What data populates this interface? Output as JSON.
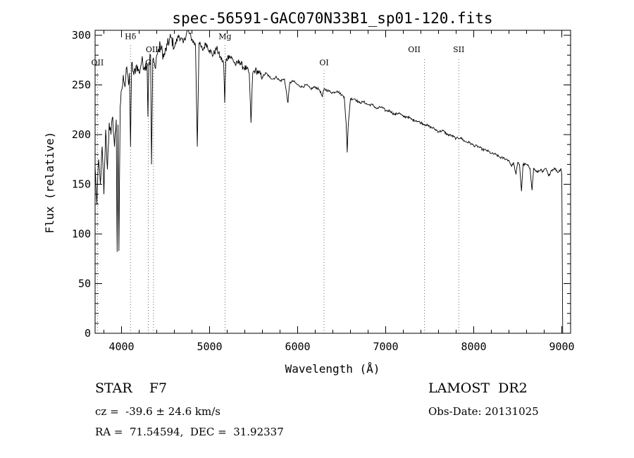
{
  "chart_data": {
    "type": "line",
    "title": "spec-56591-GAC070N33B1_sp01-120.fits",
    "xlabel": "Wavelength (Å)",
    "ylabel": "Flux (relative)",
    "xlim": [
      3700,
      9100
    ],
    "ylim": [
      0,
      305
    ],
    "xticks": [
      4000,
      5000,
      6000,
      7000,
      8000,
      9000
    ],
    "yticks": [
      0,
      50,
      100,
      150,
      200,
      250,
      300
    ],
    "grid": false,
    "legend": "none",
    "series": [
      {
        "points": [
          [
            3700,
            168
          ],
          [
            3720,
            130
          ],
          [
            3740,
            175
          ],
          [
            3760,
            150
          ],
          [
            3780,
            188
          ],
          [
            3800,
            140
          ],
          [
            3820,
            205
          ],
          [
            3840,
            165
          ],
          [
            3860,
            212
          ],
          [
            3880,
            200
          ],
          [
            3900,
            218
          ],
          [
            3920,
            188
          ],
          [
            3940,
            215
          ],
          [
            3950,
            82
          ],
          [
            3960,
            210
          ],
          [
            3970,
            83
          ],
          [
            3985,
            228
          ],
          [
            4000,
            245
          ],
          [
            4020,
            260
          ],
          [
            4040,
            248
          ],
          [
            4060,
            268
          ],
          [
            4080,
            250
          ],
          [
            4090,
            262
          ],
          [
            4102,
            188
          ],
          [
            4115,
            272
          ],
          [
            4140,
            260
          ],
          [
            4170,
            270
          ],
          [
            4200,
            262
          ],
          [
            4230,
            275
          ],
          [
            4260,
            268
          ],
          [
            4290,
            272
          ],
          [
            4300,
            218
          ],
          [
            4310,
            272
          ],
          [
            4330,
            280
          ],
          [
            4341,
            170
          ],
          [
            4355,
            275
          ],
          [
            4380,
            268
          ],
          [
            4400,
            280
          ],
          [
            4440,
            290
          ],
          [
            4480,
            278
          ],
          [
            4520,
            290
          ],
          [
            4560,
            298
          ],
          [
            4600,
            288
          ],
          [
            4650,
            300
          ],
          [
            4700,
            292
          ],
          [
            4750,
            305
          ],
          [
            4800,
            296
          ],
          [
            4840,
            290
          ],
          [
            4861,
            188
          ],
          [
            4880,
            292
          ],
          [
            4920,
            285
          ],
          [
            4960,
            292
          ],
          [
            5000,
            285
          ],
          [
            5040,
            280
          ],
          [
            5080,
            287
          ],
          [
            5120,
            278
          ],
          [
            5160,
            272
          ],
          [
            5172,
            232
          ],
          [
            5185,
            274
          ],
          [
            5220,
            280
          ],
          [
            5260,
            276
          ],
          [
            5300,
            270
          ],
          [
            5340,
            274
          ],
          [
            5380,
            268
          ],
          [
            5420,
            266
          ],
          [
            5450,
            262
          ],
          [
            5470,
            212
          ],
          [
            5490,
            262
          ],
          [
            5520,
            265
          ],
          [
            5560,
            262
          ],
          [
            5600,
            258
          ],
          [
            5640,
            262
          ],
          [
            5680,
            258
          ],
          [
            5720,
            256
          ],
          [
            5760,
            258
          ],
          [
            5800,
            254
          ],
          [
            5850,
            256
          ],
          [
            5890,
            232
          ],
          [
            5910,
            252
          ],
          [
            5950,
            254
          ],
          [
            6000,
            250
          ],
          [
            6050,
            248
          ],
          [
            6100,
            250
          ],
          [
            6150,
            246
          ],
          [
            6200,
            248
          ],
          [
            6250,
            245
          ],
          [
            6280,
            238
          ],
          [
            6300,
            246
          ],
          [
            6350,
            244
          ],
          [
            6400,
            242
          ],
          [
            6450,
            244
          ],
          [
            6500,
            240
          ],
          [
            6530,
            238
          ],
          [
            6550,
            212
          ],
          [
            6563,
            182
          ],
          [
            6575,
            210
          ],
          [
            6600,
            236
          ],
          [
            6650,
            236
          ],
          [
            6700,
            232
          ],
          [
            6750,
            233
          ],
          [
            6800,
            230
          ],
          [
            6850,
            230
          ],
          [
            6900,
            226
          ],
          [
            6950,
            228
          ],
          [
            7000,
            224
          ],
          [
            7050,
            224
          ],
          [
            7100,
            220
          ],
          [
            7150,
            222
          ],
          [
            7200,
            218
          ],
          [
            7250,
            218
          ],
          [
            7300,
            215
          ],
          [
            7350,
            214
          ],
          [
            7400,
            212
          ],
          [
            7450,
            210
          ],
          [
            7500,
            208
          ],
          [
            7550,
            206
          ],
          [
            7600,
            203
          ],
          [
            7650,
            204
          ],
          [
            7700,
            200
          ],
          [
            7750,
            199
          ],
          [
            7800,
            196
          ],
          [
            7850,
            197
          ],
          [
            7900,
            193
          ],
          [
            7950,
            192
          ],
          [
            8000,
            189
          ],
          [
            8050,
            188
          ],
          [
            8100,
            185
          ],
          [
            8150,
            184
          ],
          [
            8200,
            181
          ],
          [
            8250,
            180
          ],
          [
            8300,
            177
          ],
          [
            8350,
            176
          ],
          [
            8400,
            174
          ],
          [
            8430,
            168
          ],
          [
            8450,
            172
          ],
          [
            8480,
            160
          ],
          [
            8500,
            172
          ],
          [
            8520,
            170
          ],
          [
            8542,
            143
          ],
          [
            8560,
            170
          ],
          [
            8600,
            170
          ],
          [
            8640,
            166
          ],
          [
            8662,
            144
          ],
          [
            8680,
            166
          ],
          [
            8720,
            162
          ],
          [
            8760,
            165
          ],
          [
            8780,
            162
          ],
          [
            8820,
            166
          ],
          [
            8850,
            158
          ],
          [
            8880,
            164
          ],
          [
            8920,
            166
          ],
          [
            8960,
            162
          ],
          [
            8990,
            166
          ],
          [
            9000,
            160
          ],
          [
            9010,
            0
          ]
        ]
      }
    ],
    "lines": [
      {
        "label": "OII",
        "x": 3727,
        "label_y": 270
      },
      {
        "label": "Hδ",
        "x": 4102,
        "label_y": 296
      },
      {
        "label": "G",
        "x": 4304,
        "label_y": 270
      },
      {
        "label": "OIII",
        "x": 4363,
        "label_y": 283
      },
      {
        "label": "Mg",
        "x": 5175,
        "label_y": 296
      },
      {
        "label": "OI",
        "x": 6300,
        "label_y": 270
      },
      {
        "label": "OII",
        "x": 7325,
        "label_y": 283,
        "line_x": 7440
      },
      {
        "label": "SII",
        "x": 7830,
        "label_y": 283
      }
    ]
  },
  "info": {
    "left": [
      "STAR    F7",
      "cz =  -39.6 ± 24.6 km/s",
      "RA =  71.54594,  DEC =  31.92337"
    ],
    "right": [
      "LAMOST  DR2",
      "Obs-Date: 20131025"
    ]
  }
}
